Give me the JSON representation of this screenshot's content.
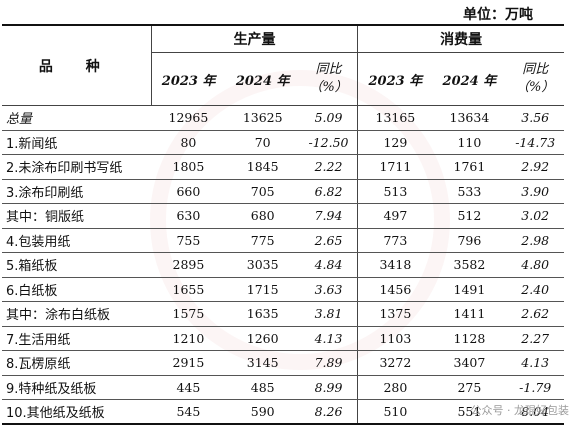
{
  "unit_label": "单位：万吨",
  "watermark": "公众号 · 龙琨好包装",
  "header": {
    "item": "品  种",
    "production": "生产量",
    "consumption": "消费量",
    "year_2023": "2023 年",
    "year_2024": "2024 年",
    "yoy": "同比",
    "yoy_unit": "（%）"
  },
  "rows": [
    {
      "name": "总量",
      "p23": "12965",
      "p24": "13625",
      "p_yoy": "5.09",
      "c23": "13165",
      "c24": "13634",
      "c_yoy": "3.56"
    },
    {
      "name": "1.新闻纸",
      "p23": "80",
      "p24": "70",
      "p_yoy": "-12.50",
      "c23": "129",
      "c24": "110",
      "c_yoy": "-14.73"
    },
    {
      "name": "2.未涂布印刷书写纸",
      "p23": "1805",
      "p24": "1845",
      "p_yoy": "2.22",
      "c23": "1711",
      "c24": "1761",
      "c_yoy": "2.92"
    },
    {
      "name": "3.涂布印刷纸",
      "p23": "660",
      "p24": "705",
      "p_yoy": "6.82",
      "c23": "513",
      "c24": "533",
      "c_yoy": "3.90"
    },
    {
      "name": "其中：铜版纸",
      "p23": "630",
      "p24": "680",
      "p_yoy": "7.94",
      "c23": "497",
      "c24": "512",
      "c_yoy": "3.02"
    },
    {
      "name": "4.包装用纸",
      "p23": "755",
      "p24": "775",
      "p_yoy": "2.65",
      "c23": "773",
      "c24": "796",
      "c_yoy": "2.98"
    },
    {
      "name": "5.箱纸板",
      "p23": "2895",
      "p24": "3035",
      "p_yoy": "4.84",
      "c23": "3418",
      "c24": "3582",
      "c_yoy": "4.80"
    },
    {
      "name": "6.白纸板",
      "p23": "1655",
      "p24": "1715",
      "p_yoy": "3.63",
      "c23": "1456",
      "c24": "1491",
      "c_yoy": "2.40"
    },
    {
      "name": "其中：涂布白纸板",
      "p23": "1575",
      "p24": "1635",
      "p_yoy": "3.81",
      "c23": "1375",
      "c24": "1411",
      "c_yoy": "2.62"
    },
    {
      "name": "7.生活用纸",
      "p23": "1210",
      "p24": "1260",
      "p_yoy": "4.13",
      "c23": "1103",
      "c24": "1128",
      "c_yoy": "2.27"
    },
    {
      "name": "8.瓦楞原纸",
      "p23": "2915",
      "p24": "3145",
      "p_yoy": "7.89",
      "c23": "3272",
      "c24": "3407",
      "c_yoy": "4.13"
    },
    {
      "name": "9.特种纸及纸板",
      "p23": "445",
      "p24": "485",
      "p_yoy": "8.99",
      "c23": "280",
      "c24": "275",
      "c_yoy": "-1.79"
    },
    {
      "name": "10.其他纸及纸板",
      "p23": "545",
      "p24": "590",
      "p_yoy": "8.26",
      "c23": "510",
      "c24": "551",
      "c_yoy": "8.04"
    }
  ]
}
